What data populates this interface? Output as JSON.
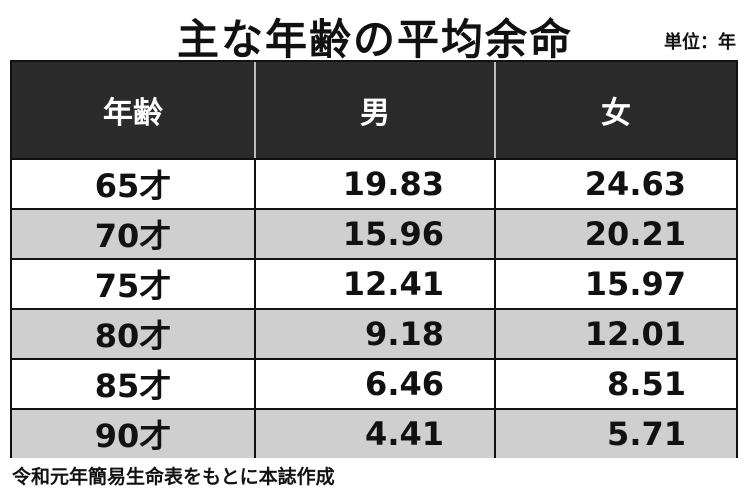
{
  "header": {
    "title": "主な年齢の平均余命",
    "unit": "単位：年"
  },
  "table": {
    "columns": [
      "年齢",
      "男",
      "女"
    ],
    "rows": [
      [
        "65才",
        "19.83",
        "24.63"
      ],
      [
        "70才",
        "15.96",
        "20.21"
      ],
      [
        "75才",
        "12.41",
        "15.97"
      ],
      [
        "80才",
        "9.18",
        "12.01"
      ],
      [
        "85才",
        "6.46",
        "8.51"
      ],
      [
        "90才",
        "4.41",
        "5.71"
      ]
    ]
  },
  "footer": {
    "source": "令和元年簡易生命表をもとに本誌作成"
  }
}
